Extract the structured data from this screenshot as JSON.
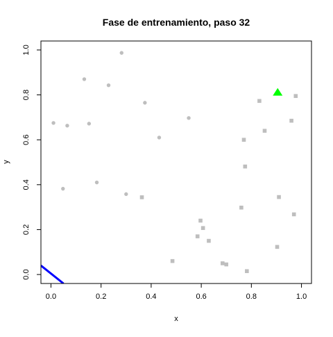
{
  "chart_data": {
    "type": "scatter",
    "title": "Fase de entrenamiento, paso 32",
    "xlabel": "x",
    "ylabel": "y",
    "xlim": [
      -0.04,
      1.04
    ],
    "ylim": [
      -0.04,
      1.04
    ],
    "grid": false,
    "x_ticks": [
      0.0,
      0.2,
      0.4,
      0.6,
      0.8,
      1.0
    ],
    "x_tick_labels": [
      "0.0",
      "0.2",
      "0.4",
      "0.6",
      "0.8",
      "1.0"
    ],
    "y_ticks": [
      0.0,
      0.2,
      0.4,
      0.6,
      0.8,
      1.0
    ],
    "y_tick_labels": [
      "0.0",
      "0.2",
      "0.4",
      "0.6",
      "0.8",
      "1.0"
    ],
    "series": [
      {
        "marker": "circle",
        "color": "#bebebe",
        "points": [
          [
            0.01,
            0.675
          ],
          [
            0.065,
            0.663
          ],
          [
            0.133,
            0.87
          ],
          [
            0.152,
            0.672
          ],
          [
            0.23,
            0.843
          ],
          [
            0.282,
            0.987
          ],
          [
            0.375,
            0.765
          ],
          [
            0.432,
            0.61
          ],
          [
            0.55,
            0.697
          ],
          [
            0.048,
            0.382
          ],
          [
            0.183,
            0.41
          ],
          [
            0.3,
            0.358
          ]
        ]
      },
      {
        "marker": "square",
        "color": "#bebebe",
        "points": [
          [
            0.363,
            0.344
          ],
          [
            0.485,
            0.06
          ],
          [
            0.585,
            0.17
          ],
          [
            0.597,
            0.24
          ],
          [
            0.607,
            0.207
          ],
          [
            0.63,
            0.15
          ],
          [
            0.685,
            0.05
          ],
          [
            0.7,
            0.045
          ],
          [
            0.76,
            0.298
          ],
          [
            0.77,
            0.6
          ],
          [
            0.775,
            0.481
          ],
          [
            0.782,
            0.015
          ],
          [
            0.832,
            0.773
          ],
          [
            0.853,
            0.64
          ],
          [
            0.903,
            0.123
          ],
          [
            0.91,
            0.345
          ],
          [
            0.96,
            0.685
          ],
          [
            0.97,
            0.268
          ],
          [
            0.977,
            0.795
          ]
        ]
      },
      {
        "marker": "triangle",
        "color": "#00ff00",
        "points": [
          [
            0.905,
            0.812
          ]
        ]
      }
    ],
    "line": {
      "color": "#0000ff",
      "points": [
        [
          -0.04,
          0.04
        ],
        [
          0.05,
          -0.04
        ]
      ]
    }
  }
}
